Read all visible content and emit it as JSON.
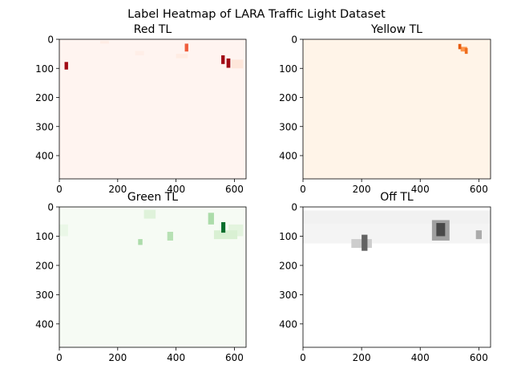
{
  "chart_data": {
    "type": "heatmap",
    "suptitle": "Label Heatmap of LARA Traffic Light Dataset",
    "xlim": [
      0,
      640
    ],
    "ylim": [
      480,
      0
    ],
    "y_axis_inverted": true,
    "grid": false,
    "legend": "none",
    "xticks": [
      "0",
      "200",
      "400",
      "600"
    ],
    "yticks": [
      "0",
      "100",
      "200",
      "300",
      "400"
    ],
    "panels": [
      {
        "title": "Red TL",
        "colormap": "Reds",
        "colors": {
          "background": "#fff4f0",
          "faint": "#fee2d5",
          "mid": "#ef5d3c",
          "high": "#a10b15"
        },
        "regions": [
          {
            "x": [
              18,
              30
            ],
            "y": [
              78,
              104
            ],
            "intensity": 1.0
          },
          {
            "x": [
              430,
              442
            ],
            "y": [
              15,
              42
            ],
            "intensity": 0.6
          },
          {
            "x": [
              555,
              567
            ],
            "y": [
              55,
              85
            ],
            "intensity": 1.0
          },
          {
            "x": [
              573,
              586
            ],
            "y": [
              66,
              98
            ],
            "intensity": 1.0
          },
          {
            "x": [
              140,
              170
            ],
            "y": [
              5,
              15
            ],
            "intensity": 0.06
          },
          {
            "x": [
              260,
              290
            ],
            "y": [
              40,
              55
            ],
            "intensity": 0.05
          },
          {
            "x": [
              400,
              440
            ],
            "y": [
              50,
              65
            ],
            "intensity": 0.07
          },
          {
            "x": [
              590,
              630
            ],
            "y": [
              70,
              100
            ],
            "intensity": 0.12
          }
        ]
      },
      {
        "title": "Yellow TL",
        "colormap": "Oranges",
        "colors": {
          "background": "#fff4e8",
          "faint": "#fee3c8",
          "mid": "#fd8c3b",
          "high": "#e65a0c"
        },
        "regions": [
          {
            "x": [
              530,
              540
            ],
            "y": [
              16,
              34
            ],
            "intensity": 1.0
          },
          {
            "x": [
              538,
              560
            ],
            "y": [
              26,
              42
            ],
            "intensity": 0.55
          },
          {
            "x": [
              552,
              562
            ],
            "y": [
              30,
              50
            ],
            "intensity": 0.85
          }
        ]
      },
      {
        "title": "Green TL",
        "colormap": "Greens",
        "colors": {
          "background": "#f6fbf4",
          "faint": "#d9f0d3",
          "mid": "#74c476",
          "high": "#0a6e2e"
        },
        "regions": [
          {
            "x": [
              555,
              569
            ],
            "y": [
              52,
              88
            ],
            "intensity": 1.0
          },
          {
            "x": [
              510,
              530
            ],
            "y": [
              20,
              60
            ],
            "intensity": 0.35
          },
          {
            "x": [
              270,
              285
            ],
            "y": [
              110,
              130
            ],
            "intensity": 0.35
          },
          {
            "x": [
              370,
              390
            ],
            "y": [
              85,
              115
            ],
            "intensity": 0.3
          },
          {
            "x": [
              290,
              330
            ],
            "y": [
              10,
              40
            ],
            "intensity": 0.12
          },
          {
            "x": [
              530,
              610
            ],
            "y": [
              80,
              110
            ],
            "intensity": 0.15
          },
          {
            "x": [
              580,
              630
            ],
            "y": [
              60,
              100
            ],
            "intensity": 0.1
          },
          {
            "x": [
              0,
              30
            ],
            "y": [
              60,
              100
            ],
            "intensity": 0.06
          }
        ]
      },
      {
        "title": "Off TL",
        "colormap": "Greys",
        "colors": {
          "background": "#ffffff",
          "faint": "#eeeeee",
          "mid": "#8a8a8a",
          "high": "#222222"
        },
        "regions": [
          {
            "x": [
              0,
              640
            ],
            "y": [
              12,
              58
            ],
            "intensity": 0.12
          },
          {
            "x": [
              0,
              640
            ],
            "y": [
              58,
              125
            ],
            "intensity": 0.1
          },
          {
            "x": [
              200,
              220
            ],
            "y": [
              95,
              150
            ],
            "intensity": 0.75
          },
          {
            "x": [
              165,
              235
            ],
            "y": [
              110,
              140
            ],
            "intensity": 0.3
          },
          {
            "x": [
              440,
              500
            ],
            "y": [
              45,
              115
            ],
            "intensity": 0.5
          },
          {
            "x": [
              455,
              485
            ],
            "y": [
              55,
              100
            ],
            "intensity": 0.85
          },
          {
            "x": [
              590,
              610
            ],
            "y": [
              80,
              110
            ],
            "intensity": 0.45
          },
          {
            "x": [
              300,
              420
            ],
            "y": [
              60,
              110
            ],
            "intensity": 0.08
          }
        ]
      }
    ]
  }
}
